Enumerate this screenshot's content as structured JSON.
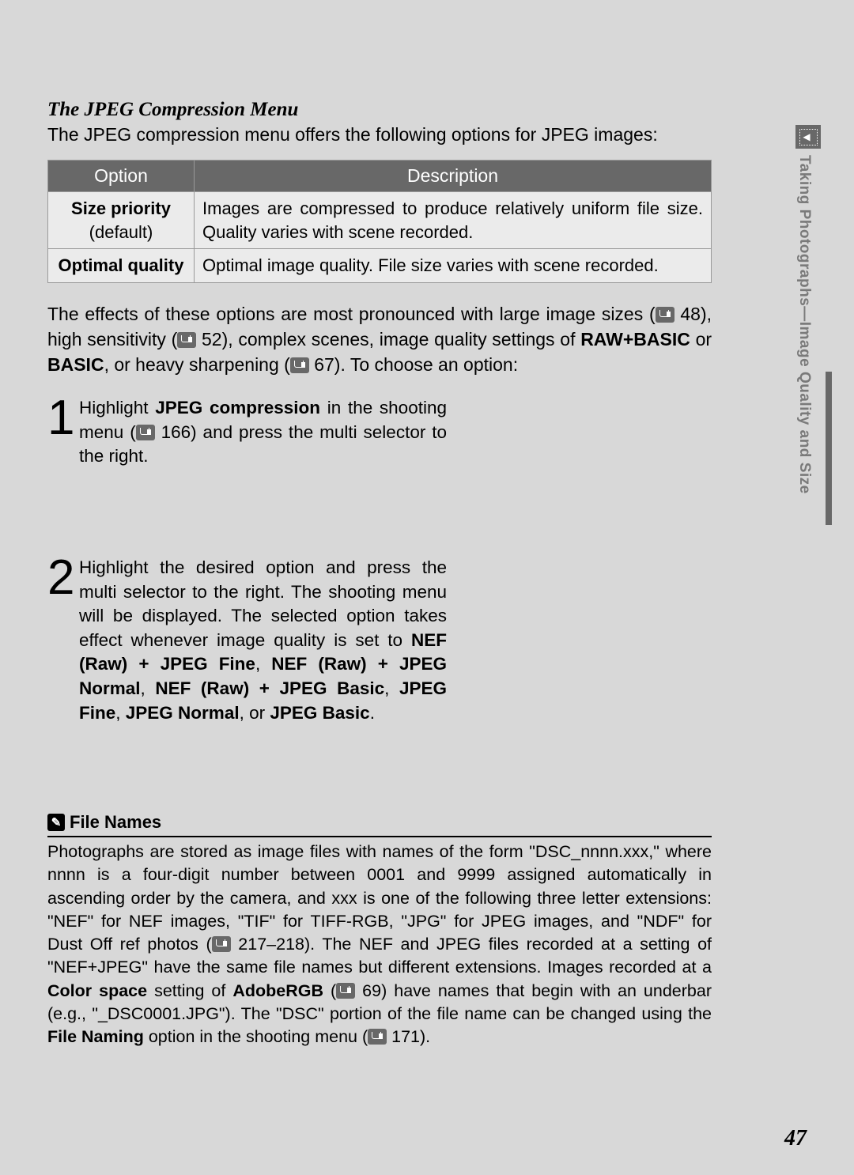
{
  "section": {
    "title": "The JPEG Compression Menu",
    "intro": "The JPEG compression menu offers the following options for JPEG images:"
  },
  "table": {
    "headers": {
      "option": "Option",
      "description": "Description"
    },
    "rows": [
      {
        "option": "Size priority",
        "sub": "(default)",
        "desc": "Images are compressed to produce relatively uniform file size. Quality varies with scene recorded."
      },
      {
        "option": "Optimal quality",
        "sub": "",
        "desc": "Optimal image quality.  File size varies with scene recorded."
      }
    ]
  },
  "effects": {
    "p1a": "The effects of these options are most pronounced with large image sizes (",
    "ref1": "48",
    "p1b": "), high sensitivity (",
    "ref2": "52",
    "p1c": "), complex scenes, image quality settings of ",
    "b1": "RAW+BASIC",
    "p1d": " or ",
    "b2": "BASIC",
    "p1e": ", or heavy sharpening (",
    "ref3": "67",
    "p1f": ").  To choose an option:"
  },
  "steps": [
    {
      "num": "1",
      "a": "Highlight ",
      "b1": "JPEG compression",
      "b": " in the shooting menu (",
      "ref": "166",
      "c": ") and press the multi selector to the right."
    },
    {
      "num": "2",
      "a": "Highlight the desired option and press the multi selector to the right.  The shooting menu will be displayed.  The selected option takes effect whenever image quality is set to ",
      "b1": "NEF (Raw) + JPEG Fine",
      "s1": ", ",
      "b2": "NEF (Raw) + JPEG Normal",
      "s2": ", ",
      "b3": "NEF (Raw) + JPEG Basic",
      "s3": ", ",
      "b4": "JPEG Fine",
      "s4": ", ",
      "b5": "JPEG Normal",
      "s5": ", or ",
      "b6": "JPEG Basic",
      "s6": "."
    }
  ],
  "note": {
    "title": "File Names",
    "a": "Photographs are stored as image files with names of the form \"DSC_nnnn.xxx,\" where nnnn is a four-digit number between 0001 and 9999 assigned automatically in ascending order by the camera, and xxx is one of the following three letter extensions: \"NEF\" for NEF images, \"TIF\" for TIFF-RGB, \"JPG\" for JPEG images, and \"NDF\" for Dust Off ref photos (",
    "ref1": "217–218",
    "b": ").  The NEF and JPEG files recorded at a setting of \"NEF+JPEG\" have the same file names but different extensions.  Images recorded at a ",
    "b1": "Color space",
    "c": " setting of ",
    "b2": "AdobeRGB",
    "d": " (",
    "ref2": "69",
    "e": ") have names that begin with an underbar (e.g., \"_DSC0001.JPG\").  The \"DSC\" portion of the file name can be changed using the ",
    "b3": "File Naming",
    "f": " option in the shooting menu (",
    "ref3": "171",
    "g": ")."
  },
  "side": {
    "text": "Taking Photographs—Image Quality and Size"
  },
  "page_number": "47",
  "colors": {
    "page_bg": "#d8d8d8",
    "header_bg": "#686868",
    "cell_bg": "#ebebeb",
    "side_text": "#7a7a7a"
  }
}
